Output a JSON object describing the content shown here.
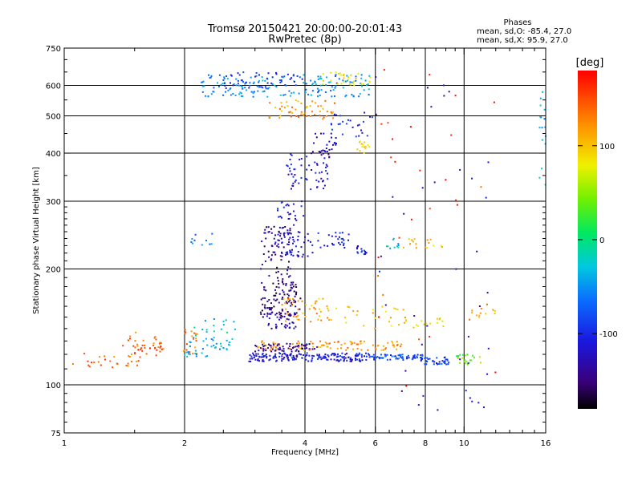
{
  "chart_data": {
    "type": "scatter",
    "title": "Tromsø 20150421 20:00:00-20:01:43",
    "subtitle": "RwPretec (8p)",
    "xlabel": "Frequency [MHz]",
    "ylabel": "Stationary phase Virtual Height [km]",
    "xscale": "log",
    "yscale": "log",
    "xlim": [
      1,
      16
    ],
    "ylim": [
      75,
      750
    ],
    "xticks": [
      1,
      2,
      4,
      6,
      8,
      10,
      16
    ],
    "xtick_labels": [
      "1",
      "2",
      "4",
      "6",
      "8",
      "10",
      "16"
    ],
    "yticks": [
      75,
      100,
      200,
      300,
      400,
      500,
      600,
      750
    ],
    "ytick_labels": [
      "75",
      "100",
      "200",
      "300",
      "400",
      "500",
      "600",
      "750"
    ],
    "grid": true,
    "stats": {
      "header": "Phases",
      "line_o": "mean, sd,O: -85.4, 27.0",
      "line_x": "mean, sd,X:  95.9, 27.0"
    },
    "colorbar": {
      "label": "[deg]",
      "range": [
        -180,
        180
      ],
      "ticks": [
        100,
        0,
        -100
      ],
      "tick_labels": [
        "100",
        "0",
        "-100"
      ]
    },
    "clusters": [
      {
        "f": [
          1.05,
          1.55
        ],
        "h": [
          110,
          122
        ],
        "phase": 140,
        "n": 28
      },
      {
        "f": [
          1.5,
          1.8
        ],
        "h": [
          118,
          128
        ],
        "phase": 150,
        "n": 22
      },
      {
        "f": [
          1.35,
          1.85
        ],
        "h": [
          125,
          137
        ],
        "phase": 135,
        "n": 18
      },
      {
        "f": [
          1.95,
          2.15
        ],
        "h": [
          120,
          140
        ],
        "phase": 130,
        "n": 20
      },
      {
        "f": [
          2.0,
          2.6
        ],
        "h": [
          118,
          132
        ],
        "phase": -40,
        "n": 35
      },
      {
        "f": [
          2.1,
          2.7
        ],
        "h": [
          130,
          150
        ],
        "phase": -30,
        "n": 22
      },
      {
        "f": [
          2.9,
          5.8
        ],
        "h": [
          115,
          121
        ],
        "phase": -110,
        "n": 180
      },
      {
        "f": [
          5.8,
          8.0
        ],
        "h": [
          116,
          120
        ],
        "phase": -80,
        "n": 70
      },
      {
        "f": [
          7.8,
          9.2
        ],
        "h": [
          113,
          118
        ],
        "phase": -90,
        "n": 40
      },
      {
        "f": [
          9.5,
          11.0
        ],
        "h": [
          113,
          120
        ],
        "phase": 40,
        "n": 22
      },
      {
        "f": [
          3.0,
          4.3
        ],
        "h": [
          122,
          128
        ],
        "phase": -140,
        "n": 70
      },
      {
        "f": [
          3.0,
          7.0
        ],
        "h": [
          123,
          130
        ],
        "phase": 120,
        "n": 90
      },
      {
        "f": [
          3.1,
          3.9
        ],
        "h": [
          150,
          185
        ],
        "phase": -150,
        "n": 100
      },
      {
        "f": [
          3.2,
          3.8
        ],
        "h": [
          140,
          155
        ],
        "phase": -130,
        "n": 40
      },
      {
        "f": [
          3.5,
          4.6
        ],
        "h": [
          145,
          168
        ],
        "phase": 110,
        "n": 45
      },
      {
        "f": [
          4.5,
          7.2
        ],
        "h": [
          140,
          160
        ],
        "phase": 100,
        "n": 28
      },
      {
        "f": [
          7.0,
          9.0
        ],
        "h": [
          140,
          150
        ],
        "phase": 90,
        "n": 15
      },
      {
        "f": [
          10.3,
          12.0
        ],
        "h": [
          148,
          158
        ],
        "phase": 110,
        "n": 12
      },
      {
        "f": [
          3.1,
          3.7
        ],
        "h": [
          185,
          260
        ],
        "phase": -145,
        "n": 70
      },
      {
        "f": [
          3.3,
          4.2
        ],
        "h": [
          215,
          250
        ],
        "phase": -115,
        "n": 55
      },
      {
        "f": [
          4.3,
          5.2
        ],
        "h": [
          225,
          250
        ],
        "phase": -105,
        "n": 28
      },
      {
        "f": [
          5.4,
          5.7
        ],
        "h": [
          218,
          230
        ],
        "phase": -100,
        "n": 16
      },
      {
        "f": [
          6.3,
          7.0
        ],
        "h": [
          225,
          240
        ],
        "phase": -30,
        "n": 10
      },
      {
        "f": [
          7.0,
          9.0
        ],
        "h": [
          225,
          240
        ],
        "phase": 100,
        "n": 16
      },
      {
        "f": [
          2.0,
          2.6
        ],
        "h": [
          230,
          250
        ],
        "phase": -60,
        "n": 10
      },
      {
        "f": [
          3.4,
          4.0
        ],
        "h": [
          260,
          300
        ],
        "phase": -110,
        "n": 25
      },
      {
        "f": [
          3.6,
          4.6
        ],
        "h": [
          320,
          400
        ],
        "phase": -115,
        "n": 55
      },
      {
        "f": [
          4.1,
          4.8
        ],
        "h": [
          390,
          450
        ],
        "phase": -130,
        "n": 32
      },
      {
        "f": [
          4.6,
          5.9
        ],
        "h": [
          440,
          510
        ],
        "phase": -100,
        "n": 26
      },
      {
        "f": [
          5.4,
          5.8
        ],
        "h": [
          400,
          430
        ],
        "phase": 90,
        "n": 14
      },
      {
        "f": [
          3.2,
          4.8
        ],
        "h": [
          490,
          550
        ],
        "phase": 120,
        "n": 55
      },
      {
        "f": [
          2.2,
          5.8
        ],
        "h": [
          560,
          640
        ],
        "phase": -50,
        "n": 160
      },
      {
        "f": [
          2.5,
          4.0
        ],
        "h": [
          590,
          650
        ],
        "phase": -90,
        "n": 50
      },
      {
        "f": [
          4.4,
          5.9
        ],
        "h": [
          600,
          650
        ],
        "phase": 80,
        "n": 30
      },
      {
        "f": [
          15.4,
          16.0
        ],
        "h": [
          330,
          640
        ],
        "phase": -40,
        "n": 18
      },
      {
        "f": [
          6.0,
          12.0
        ],
        "h": [
          80,
          700
        ],
        "phase": -120,
        "n": 40
      },
      {
        "f": [
          6.0,
          12.0
        ],
        "h": [
          80,
          700
        ],
        "phase": 160,
        "n": 30
      }
    ]
  }
}
